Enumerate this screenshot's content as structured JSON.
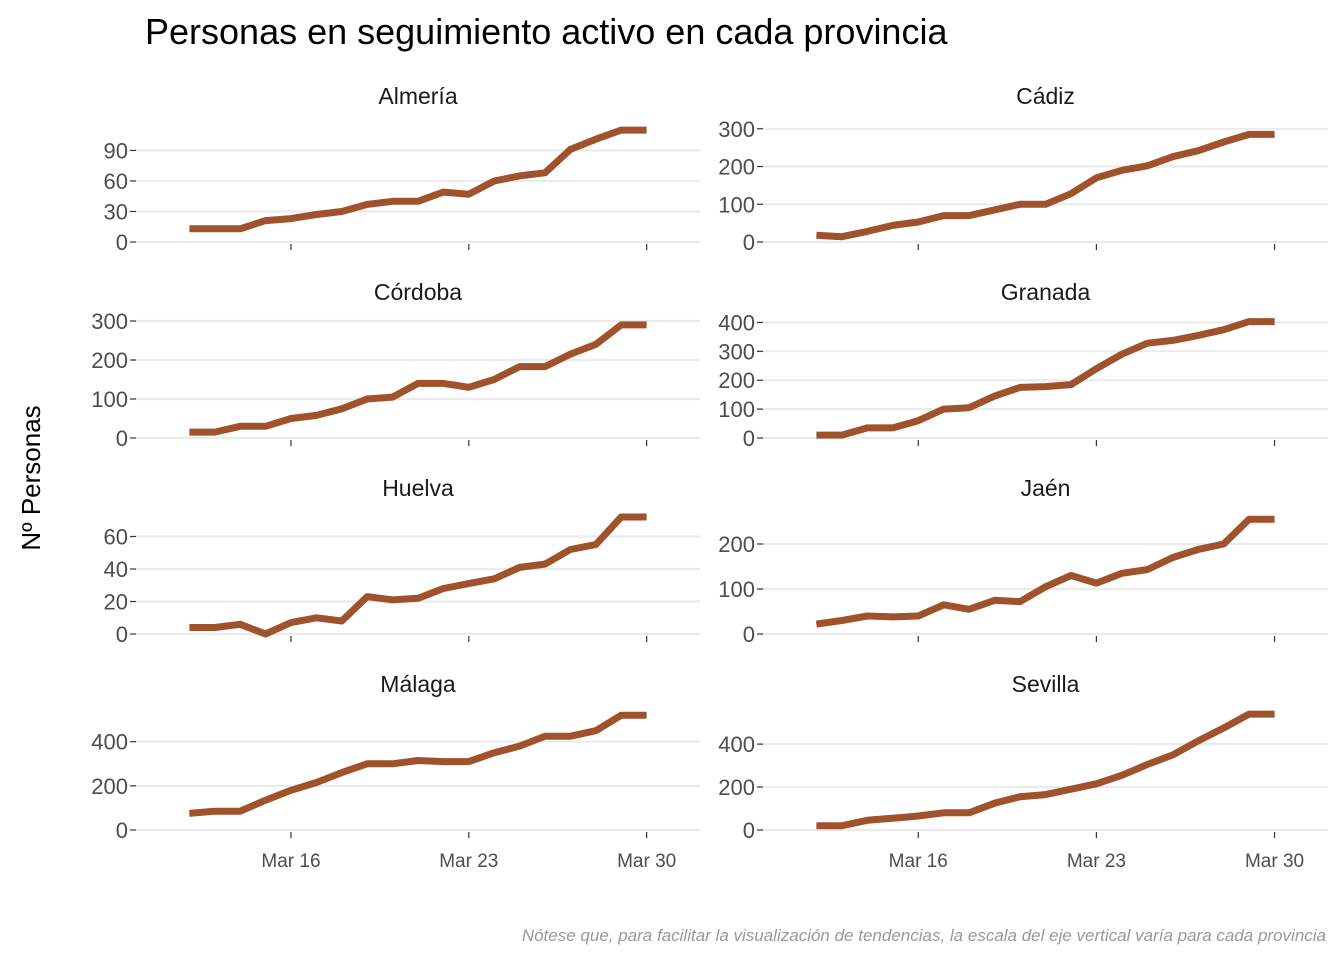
{
  "chart_data": {
    "type": "line",
    "title": "Personas en seguimiento activo en cada provincia",
    "ylabel": "Nº Personas",
    "xlabel": "",
    "caption": "Nótese que, para facilitar la visualización de tendencias, la escala del eje vertical varía para cada provincia",
    "x_ticks": [
      {
        "day": 16,
        "label": "Mar 16"
      },
      {
        "day": 23,
        "label": "Mar 23"
      },
      {
        "day": 30,
        "label": "Mar 30"
      }
    ],
    "x_days": [
      12,
      13,
      14,
      15,
      16,
      17,
      18,
      19,
      20,
      21,
      22,
      23,
      24,
      25,
      26,
      27,
      28,
      29,
      30
    ],
    "x_range": [
      9.9,
      32.1
    ],
    "grid": true,
    "line_color": "#A0522D",
    "panels": [
      {
        "name": "Almería",
        "yticks": [
          0,
          30,
          60,
          90
        ],
        "ylim": [
          0,
          115
        ],
        "values": [
          13,
          13,
          13,
          21,
          23,
          27,
          30,
          37,
          40,
          40,
          49,
          47,
          60,
          65,
          68,
          91,
          101,
          110,
          110
        ]
      },
      {
        "name": "Cádiz",
        "yticks": [
          0,
          100,
          200,
          300
        ],
        "ylim": [
          0,
          310
        ],
        "values": [
          18,
          14,
          28,
          44,
          53,
          70,
          70,
          85,
          100,
          100,
          128,
          170,
          190,
          202,
          226,
          242,
          265,
          285,
          285
        ]
      },
      {
        "name": "Córdoba",
        "yticks": [
          0,
          100,
          200,
          300
        ],
        "ylim": [
          0,
          300
        ],
        "values": [
          15,
          15,
          30,
          30,
          50,
          58,
          75,
          100,
          105,
          140,
          140,
          130,
          150,
          183,
          183,
          215,
          240,
          290,
          290
        ]
      },
      {
        "name": "Granada",
        "yticks": [
          0,
          100,
          200,
          300,
          400
        ],
        "ylim": [
          0,
          405
        ],
        "values": [
          10,
          10,
          35,
          35,
          60,
          100,
          105,
          145,
          175,
          178,
          185,
          240,
          290,
          328,
          338,
          355,
          375,
          403,
          403
        ]
      },
      {
        "name": "Huelva",
        "yticks": [
          0,
          20,
          40,
          60
        ],
        "ylim": [
          0,
          72
        ],
        "values": [
          4,
          4,
          6,
          0,
          7,
          10,
          8,
          23,
          21,
          22,
          28,
          31,
          34,
          41,
          43,
          52,
          55,
          72,
          72
        ]
      },
      {
        "name": "Jaén",
        "yticks": [
          0,
          100,
          200
        ],
        "ylim": [
          0,
          260
        ],
        "values": [
          22,
          30,
          40,
          38,
          40,
          65,
          55,
          75,
          72,
          105,
          130,
          113,
          135,
          143,
          170,
          188,
          200,
          255,
          255
        ]
      },
      {
        "name": "Málaga",
        "yticks": [
          0,
          200,
          400
        ],
        "ylim": [
          0,
          530
        ],
        "values": [
          75,
          85,
          85,
          135,
          180,
          215,
          260,
          300,
          300,
          315,
          310,
          310,
          350,
          380,
          425,
          425,
          450,
          520,
          520
        ]
      },
      {
        "name": "Sevilla",
        "yticks": [
          0,
          200,
          400
        ],
        "ylim": [
          0,
          545
        ],
        "values": [
          20,
          20,
          45,
          55,
          65,
          80,
          80,
          125,
          155,
          165,
          190,
          215,
          255,
          305,
          350,
          415,
          475,
          540,
          540
        ]
      }
    ]
  }
}
